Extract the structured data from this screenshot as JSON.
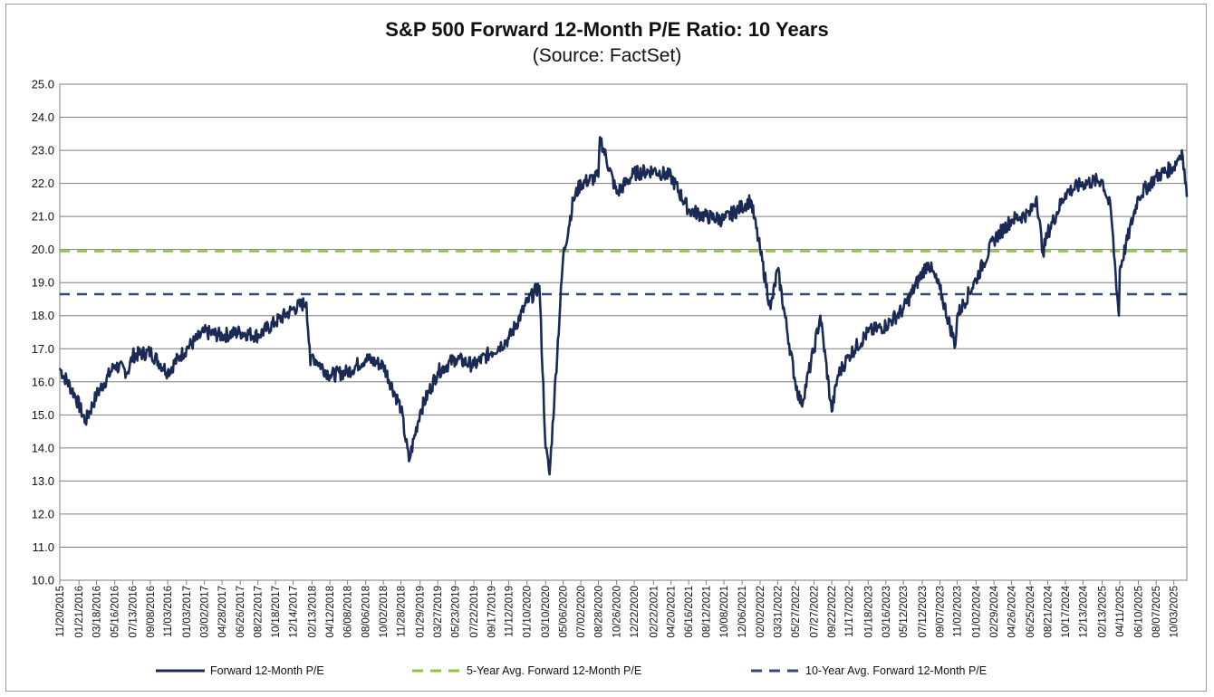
{
  "chart_data": {
    "type": "line",
    "title": "S&P 500 Forward 12-Month P/E Ratio: 10 Years",
    "subtitle": "(Source: FactSet)",
    "ylim": [
      10.0,
      25.0
    ],
    "y_ticks": [
      "10.0",
      "11.0",
      "12.0",
      "13.0",
      "14.0",
      "15.0",
      "16.0",
      "17.0",
      "18.0",
      "19.0",
      "20.0",
      "21.0",
      "22.0",
      "23.0",
      "24.0",
      "25.0"
    ],
    "x_tick_labels": [
      "11/20/2015",
      "01/21/2016",
      "03/18/2016",
      "05/16/2016",
      "07/13/2016",
      "09/08/2016",
      "11/03/2016",
      "01/03/2017",
      "03/02/2017",
      "04/28/2017",
      "06/26/2017",
      "08/22/2017",
      "10/18/2017",
      "12/14/2017",
      "02/13/2018",
      "04/12/2018",
      "06/08/2018",
      "08/06/2018",
      "10/02/2018",
      "11/28/2018",
      "01/29/2019",
      "03/27/2019",
      "05/23/2019",
      "07/22/2019",
      "09/17/2019",
      "11/12/2019",
      "01/10/2020",
      "03/10/2020",
      "05/06/2020",
      "07/02/2020",
      "08/28/2020",
      "10/26/2020",
      "12/22/2020",
      "02/22/2021",
      "04/20/2021",
      "06/16/2021",
      "08/12/2021",
      "10/08/2021",
      "12/06/2021",
      "02/02/2022",
      "03/31/2022",
      "05/27/2022",
      "07/27/2022",
      "09/22/2022",
      "11/17/2022",
      "01/18/2023",
      "03/16/2023",
      "05/12/2023",
      "07/12/2023",
      "09/07/2023",
      "11/02/2023",
      "01/02/2024",
      "02/29/2024",
      "04/26/2024",
      "06/25/2024",
      "08/21/2024",
      "10/17/2024",
      "12/13/2024",
      "02/13/2025",
      "04/11/2025",
      "06/10/2025",
      "08/07/2025",
      "10/03/2025"
    ],
    "grid": true,
    "legend_position": "bottom",
    "x": [
      "11/20/2015",
      "01/08/2016",
      "02/11/2016",
      "03/18/2016",
      "05/16/2016",
      "06/27/2016",
      "07/13/2016",
      "09/08/2016",
      "11/03/2016",
      "12/15/2016",
      "01/03/2017",
      "03/02/2017",
      "04/28/2017",
      "06/26/2017",
      "08/22/2017",
      "10/18/2017",
      "12/14/2017",
      "01/26/2018",
      "02/08/2018",
      "02/13/2018",
      "04/12/2018",
      "06/08/2018",
      "08/06/2018",
      "10/02/2018",
      "11/28/2018",
      "12/24/2018",
      "01/29/2019",
      "03/27/2019",
      "05/23/2019",
      "07/22/2019",
      "09/17/2019",
      "11/12/2019",
      "01/10/2020",
      "02/19/2020",
      "03/10/2020",
      "03/23/2020",
      "05/06/2020",
      "06/08/2020",
      "07/02/2020",
      "08/28/2020",
      "09/02/2020",
      "10/26/2020",
      "12/22/2020",
      "02/22/2021",
      "04/20/2021",
      "06/16/2021",
      "08/12/2021",
      "10/08/2021",
      "12/06/2021",
      "01/03/2022",
      "02/02/2022",
      "03/08/2022",
      "03/31/2022",
      "05/27/2022",
      "06/16/2022",
      "07/27/2022",
      "08/16/2022",
      "09/22/2022",
      "10/12/2022",
      "11/17/2022",
      "01/18/2023",
      "03/16/2023",
      "05/12/2023",
      "07/12/2023",
      "07/31/2023",
      "09/07/2023",
      "10/27/2023",
      "11/02/2023",
      "01/02/2024",
      "02/29/2024",
      "04/26/2024",
      "06/25/2024",
      "07/16/2024",
      "08/05/2024",
      "08/21/2024",
      "10/17/2024",
      "12/13/2024",
      "02/13/2025",
      "03/13/2025",
      "04/08/2025",
      "04/11/2025",
      "06/10/2025",
      "08/07/2025",
      "10/03/2025",
      "10/29/2025",
      "11/14/2025"
    ],
    "series": [
      {
        "name": "Forward 12-Month P/E",
        "color": "#1a2a55",
        "style": "solid",
        "values": [
          16.4,
          15.6,
          14.8,
          15.6,
          16.5,
          16.3,
          16.8,
          16.9,
          16.3,
          16.8,
          17.0,
          17.5,
          17.4,
          17.5,
          17.4,
          17.8,
          18.2,
          18.4,
          16.5,
          16.8,
          16.2,
          16.3,
          16.7,
          16.5,
          15.2,
          13.6,
          15.1,
          16.3,
          16.7,
          16.5,
          16.9,
          17.3,
          18.4,
          18.9,
          14.0,
          13.2,
          19.8,
          21.5,
          22.0,
          22.2,
          23.4,
          21.7,
          22.3,
          22.4,
          22.2,
          21.2,
          21.0,
          20.9,
          21.3,
          21.5,
          20.0,
          18.2,
          19.4,
          16.0,
          15.3,
          17.0,
          18.0,
          15.1,
          16.2,
          16.8,
          17.5,
          17.7,
          18.2,
          19.3,
          19.6,
          18.8,
          17.1,
          18.0,
          19.1,
          20.3,
          20.9,
          21.1,
          21.6,
          19.9,
          20.5,
          21.7,
          22.0,
          22.1,
          21.2,
          18.0,
          19.4,
          21.6,
          22.2,
          22.5,
          23.0,
          21.6
        ]
      },
      {
        "name": "5-Year Avg. Forward 12-Month P/E",
        "color": "#8cc63f",
        "style": "dashed",
        "value": 19.95
      },
      {
        "name": "10-Year Avg. Forward 12-Month P/E",
        "color": "#2e4a78",
        "style": "dashed",
        "value": 18.65
      }
    ]
  }
}
